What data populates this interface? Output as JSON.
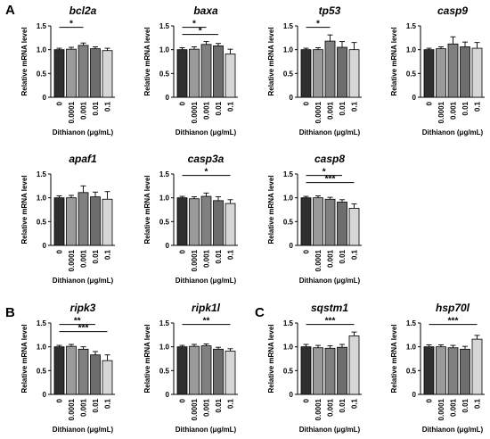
{
  "panel_letters": [
    "A",
    "B",
    "C"
  ],
  "colors": {
    "bars": [
      "#2f2f2f",
      "#9a9a9a",
      "#808080",
      "#6d6d6d",
      "#d6d6d6"
    ],
    "axis": "#000000"
  },
  "chart_data": [
    {
      "type": "bar",
      "title": "bcl2a",
      "panel": "A",
      "categories": [
        "0",
        "0.0001",
        "0.001",
        "0.01",
        "0.1"
      ],
      "values": [
        1.0,
        1.01,
        1.09,
        1.02,
        0.98
      ],
      "errors": [
        0.03,
        0.04,
        0.05,
        0.04,
        0.05
      ],
      "ylabel": "Relative mRNA level",
      "xlabel": "Dithianon (μg/mL)",
      "ylim": [
        0,
        1.5
      ],
      "yticks": [
        "0",
        "0.5",
        "1.0",
        "1.5"
      ],
      "significance": [
        {
          "from": 0,
          "to": 2,
          "label": "*"
        }
      ]
    },
    {
      "type": "bar",
      "title": "baxa",
      "panel": "A",
      "categories": [
        "0",
        "0.0001",
        "0.001",
        "0.01",
        "0.1"
      ],
      "values": [
        1.0,
        1.01,
        1.11,
        1.08,
        0.91
      ],
      "errors": [
        0.04,
        0.05,
        0.06,
        0.05,
        0.1
      ],
      "ylabel": "Relative mRNA level",
      "xlabel": "Dithianon (μg/mL)",
      "ylim": [
        0,
        1.5
      ],
      "yticks": [
        "0",
        "0.5",
        "1.0",
        "1.5"
      ],
      "significance": [
        {
          "from": 0,
          "to": 2,
          "label": "*"
        },
        {
          "from": 0,
          "to": 3,
          "label": "*"
        }
      ]
    },
    {
      "type": "bar",
      "title": "tp53",
      "panel": "A",
      "categories": [
        "0",
        "0.0001",
        "0.001",
        "0.01",
        "0.1"
      ],
      "values": [
        1.0,
        1.0,
        1.18,
        1.05,
        1.0
      ],
      "errors": [
        0.03,
        0.04,
        0.13,
        0.12,
        0.15
      ],
      "ylabel": "Relative mRNA level",
      "xlabel": "Dithianon (μg/mL)",
      "ylim": [
        0,
        1.5
      ],
      "yticks": [
        "0",
        "0.5",
        "1.0",
        "1.5"
      ],
      "significance": [
        {
          "from": 0,
          "to": 2,
          "label": "*"
        }
      ]
    },
    {
      "type": "bar",
      "title": "casp9",
      "panel": "A",
      "categories": [
        "0",
        "0.0001",
        "0.001",
        "0.01",
        "0.1"
      ],
      "values": [
        1.0,
        1.02,
        1.12,
        1.06,
        1.03
      ],
      "errors": [
        0.03,
        0.04,
        0.15,
        0.1,
        0.12
      ],
      "ylabel": "Relative mRNA level",
      "xlabel": "Dithianon (μg/mL)",
      "ylim": [
        0,
        1.5
      ],
      "yticks": [
        "0",
        "0.5",
        "1.0",
        "1.5"
      ],
      "significance": []
    },
    {
      "type": "bar",
      "title": "apaf1",
      "panel": "A",
      "categories": [
        "0",
        "0.0001",
        "0.001",
        "0.01",
        "0.1"
      ],
      "values": [
        1.0,
        1.0,
        1.11,
        1.02,
        0.97
      ],
      "errors": [
        0.04,
        0.05,
        0.14,
        0.1,
        0.16
      ],
      "ylabel": "Relative mRNA level",
      "xlabel": "Dithianon (μg/mL)",
      "ylim": [
        0,
        1.5
      ],
      "yticks": [
        "0",
        "0.5",
        "1.0",
        "1.5"
      ],
      "significance": []
    },
    {
      "type": "bar",
      "title": "casp3a",
      "panel": "A",
      "categories": [
        "0",
        "0.0001",
        "0.001",
        "0.01",
        "0.1"
      ],
      "values": [
        1.0,
        0.98,
        1.03,
        0.94,
        0.88
      ],
      "errors": [
        0.03,
        0.04,
        0.07,
        0.08,
        0.08
      ],
      "ylabel": "Relative mRNA level",
      "xlabel": "Dithianon (μg/mL)",
      "ylim": [
        0,
        1.5
      ],
      "yticks": [
        "0",
        "0.5",
        "1.0",
        "1.5"
      ],
      "significance": [
        {
          "from": 0,
          "to": 4,
          "label": "*"
        }
      ]
    },
    {
      "type": "bar",
      "title": "casp8",
      "panel": "A",
      "categories": [
        "0",
        "0.0001",
        "0.001",
        "0.01",
        "0.1"
      ],
      "values": [
        1.0,
        1.0,
        0.97,
        0.91,
        0.78
      ],
      "errors": [
        0.03,
        0.04,
        0.04,
        0.05,
        0.09
      ],
      "ylabel": "Relative mRNA level",
      "xlabel": "Dithianon (μg/mL)",
      "ylim": [
        0,
        1.5
      ],
      "yticks": [
        "0",
        "0.5",
        "1.0",
        "1.5"
      ],
      "significance": [
        {
          "from": 0,
          "to": 3,
          "label": "*"
        },
        {
          "from": 0,
          "to": 4,
          "label": "***"
        }
      ]
    },
    {
      "type": "bar",
      "title": "ripk3",
      "panel": "B",
      "categories": [
        "0",
        "0.0001",
        "0.001",
        "0.01",
        "0.1"
      ],
      "values": [
        1.0,
        1.01,
        0.95,
        0.83,
        0.71
      ],
      "errors": [
        0.03,
        0.04,
        0.05,
        0.07,
        0.12
      ],
      "ylabel": "Relative mRNA level",
      "xlabel": "Dithianon (μg/mL)",
      "ylim": [
        0,
        1.5
      ],
      "yticks": [
        "0",
        "0.5",
        "1.0",
        "1.5"
      ],
      "significance": [
        {
          "from": 0,
          "to": 3,
          "label": "**"
        },
        {
          "from": 0,
          "to": 4,
          "label": "***"
        }
      ]
    },
    {
      "type": "bar",
      "title": "ripk1l",
      "panel": "B",
      "categories": [
        "0",
        "0.0001",
        "0.001",
        "0.01",
        "0.1"
      ],
      "values": [
        1.0,
        1.01,
        1.02,
        0.95,
        0.91
      ],
      "errors": [
        0.03,
        0.04,
        0.04,
        0.04,
        0.05
      ],
      "ylabel": "Relative mRNA level",
      "xlabel": "Dithianon (μg/mL)",
      "ylim": [
        0,
        1.5
      ],
      "yticks": [
        "0",
        "0.5",
        "1.0",
        "1.5"
      ],
      "significance": [
        {
          "from": 0,
          "to": 4,
          "label": "**"
        }
      ]
    },
    {
      "type": "bar",
      "title": "sqstm1",
      "panel": "C",
      "categories": [
        "0",
        "0.0001",
        "0.001",
        "0.01",
        "0.1"
      ],
      "values": [
        1.0,
        0.98,
        0.97,
        0.99,
        1.23
      ],
      "errors": [
        0.05,
        0.05,
        0.05,
        0.06,
        0.08
      ],
      "ylabel": "Relative mRNA level",
      "xlabel": "Dithianon (μg/mL)",
      "ylim": [
        0,
        1.5
      ],
      "yticks": [
        "0",
        "0.5",
        "1.0",
        "1.5"
      ],
      "significance": [
        {
          "from": 0,
          "to": 4,
          "label": "***"
        }
      ]
    },
    {
      "type": "bar",
      "title": "hsp70l",
      "panel": "C",
      "categories": [
        "0",
        "0.0001",
        "0.001",
        "0.01",
        "0.1"
      ],
      "values": [
        1.0,
        1.0,
        0.98,
        0.95,
        1.16
      ],
      "errors": [
        0.04,
        0.04,
        0.05,
        0.06,
        0.08
      ],
      "ylabel": "Relative mRNA level",
      "xlabel": "Dithianon (μg/mL)",
      "ylim": [
        0,
        1.5
      ],
      "yticks": [
        "0",
        "0.5",
        "1.0",
        "1.5"
      ],
      "significance": [
        {
          "from": 0,
          "to": 4,
          "label": "***"
        }
      ]
    }
  ]
}
